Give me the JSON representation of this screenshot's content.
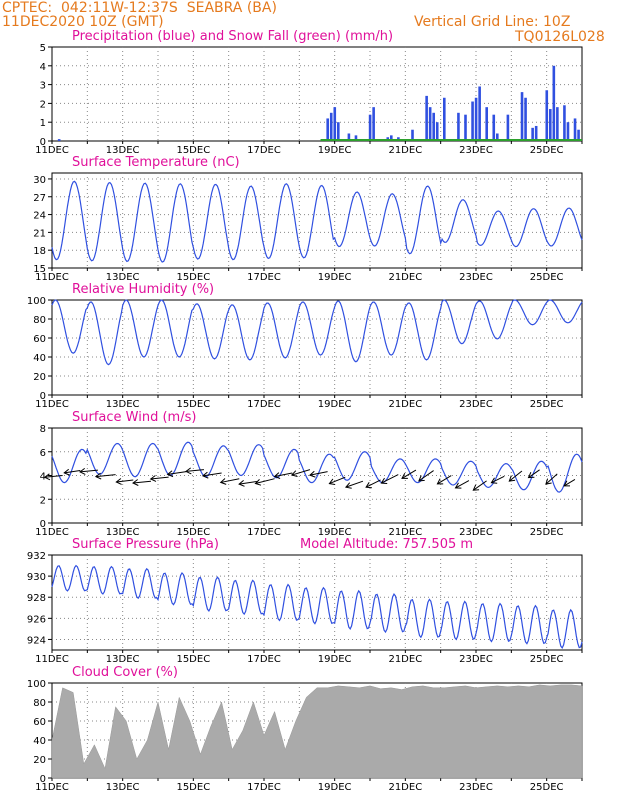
{
  "header": {
    "line1": "CPTEC:  042:11W-12:37S  SEABRA (BA)",
    "line2": "11DEC2020 10Z (GMT)",
    "grid_note": "Vertical Grid Line: 10Z",
    "code": "TQ0126L028"
  },
  "x_axis": {
    "days": 15,
    "tick_labels": [
      "11DEC",
      "13DEC",
      "15DEC",
      "17DEC",
      "19DEC",
      "21DEC",
      "23DEC",
      "25DEC"
    ],
    "tick_days": [
      0,
      2,
      4,
      6,
      8,
      10,
      12,
      14
    ]
  },
  "colors": {
    "line": "#3050e0",
    "snow": "#2ca02c",
    "title": "#e0109a",
    "header": "#e57a1e",
    "cloud": "#aaaaaa"
  },
  "chart_data": [
    {
      "type": "bar",
      "title": "Precipitation (blue) and Snow Fall (green) (mm/h)",
      "ylim": [
        0,
        5
      ],
      "yticks": [
        0,
        1,
        2,
        3,
        4,
        5
      ],
      "series": [
        {
          "name": "Precipitation",
          "color": "#3050e0",
          "x": [
            0.2,
            7.8,
            7.9,
            8.0,
            8.1,
            8.4,
            8.6,
            9.0,
            9.1,
            9.5,
            9.6,
            9.8,
            10.2,
            10.6,
            10.7,
            10.8,
            10.9,
            11.1,
            11.5,
            11.7,
            11.9,
            12.0,
            12.1,
            12.3,
            12.5,
            12.6,
            12.9,
            13.3,
            13.4,
            13.6,
            13.7,
            14.0,
            14.1,
            14.2,
            14.3,
            14.5,
            14.6,
            14.8,
            14.9
          ],
          "values": [
            0.1,
            1.2,
            1.5,
            1.8,
            1.0,
            0.4,
            0.3,
            1.4,
            1.8,
            0.2,
            0.3,
            0.2,
            0.6,
            2.4,
            1.8,
            1.5,
            1.0,
            2.3,
            1.5,
            1.4,
            2.1,
            2.3,
            2.9,
            1.8,
            1.4,
            0.4,
            1.4,
            2.6,
            2.3,
            0.7,
            0.8,
            2.7,
            1.7,
            4.0,
            1.8,
            1.9,
            1.0,
            1.2,
            0.6
          ]
        },
        {
          "name": "Snow Fall",
          "color": "#2ca02c",
          "x": [],
          "values": []
        }
      ]
    },
    {
      "type": "line",
      "title": "Surface Temperature (nC)",
      "ylim": [
        15,
        31
      ],
      "yticks": [
        15,
        18,
        21,
        24,
        27,
        30
      ],
      "series": [
        {
          "name": "Temperature",
          "period": 1,
          "phase": 0.38,
          "amp": [
            6.6,
            6.6,
            6.6,
            6.6,
            6.3,
            6.2,
            6.3,
            6.1,
            4.6,
            4.4,
            5.7,
            3.6,
            2.9,
            3.2,
            3.2
          ],
          "mean": [
            23.0,
            22.8,
            22.7,
            22.6,
            22.8,
            22.6,
            22.9,
            22.8,
            23.2,
            23.1,
            23.1,
            22.9,
            21.7,
            21.8,
            21.9
          ]
        }
      ]
    },
    {
      "type": "line",
      "title": "Relative Humidity (%)",
      "ylim": [
        0,
        100
      ],
      "yticks": [
        0,
        20,
        40,
        60,
        80,
        100
      ],
      "series": [
        {
          "name": "Relative Humidity",
          "period": 1,
          "phase": 0.85,
          "amp": [
            28,
            33,
            30,
            30,
            29,
            29,
            29,
            28,
            32,
            28,
            30,
            23,
            20,
            13,
            12
          ],
          "mean": [
            72,
            65,
            70,
            70,
            67,
            66,
            68,
            70,
            67,
            70,
            67,
            77,
            79,
            87,
            88
          ]
        }
      ]
    },
    {
      "type": "line",
      "title": "Surface Wind (m/s)",
      "ylim": [
        0,
        8
      ],
      "yticks": [
        0,
        2,
        4,
        6,
        8
      ],
      "series": [
        {
          "name": "Wind Speed",
          "period": 1,
          "phase": 0.6,
          "amp": [
            1.4,
            1.3,
            1.4,
            1.4,
            1.3,
            1.3,
            1.2,
            1.2,
            1.2,
            1.0,
            1.0,
            1.0,
            1.0,
            1.2,
            1.6
          ],
          "mean": [
            4.8,
            5.4,
            5.3,
            5.4,
            5.2,
            5.3,
            5.0,
            4.6,
            4.8,
            4.4,
            4.4,
            4.2,
            4.0,
            4.0,
            4.2
          ]
        }
      ],
      "arrows": {
        "day": [
          0.3,
          0.8,
          1.3,
          1.8,
          2.3,
          2.8,
          3.3,
          3.8,
          4.3,
          4.8,
          5.3,
          5.8,
          6.3,
          6.8,
          7.3,
          7.8,
          8.3,
          8.8,
          9.3,
          9.8,
          10.3,
          10.8,
          11.3,
          11.8,
          12.3,
          12.8,
          13.3,
          13.8,
          14.3,
          14.8
        ],
        "dx": [
          -1,
          -1,
          -1,
          -1,
          -1,
          -1,
          -1,
          -1,
          -1,
          -1,
          -1,
          -1,
          -1,
          -1,
          -1,
          -1,
          -1,
          -1,
          -1,
          -1,
          -1,
          -1,
          -1,
          -1,
          -1,
          -1,
          -1,
          -1,
          -1,
          -1
        ],
        "dy": [
          -0.1,
          -0.15,
          -0.1,
          -0.1,
          -0.12,
          -0.1,
          -0.1,
          -0.15,
          -0.1,
          -0.15,
          -0.2,
          -0.15,
          -0.25,
          -0.2,
          -0.3,
          -0.2,
          -0.4,
          -0.35,
          -0.5,
          -0.5,
          -0.6,
          -0.7,
          -0.6,
          -0.55,
          -0.7,
          -0.5,
          -0.8,
          -0.7,
          -0.9,
          -0.6
        ],
        "len": [
          1.0,
          0.9,
          1.0,
          1.1,
          0.95,
          1.0,
          1.0,
          1.05,
          1.0,
          1.05,
          1.05,
          1.0,
          1.1,
          1.0,
          1.05,
          1.0,
          0.95,
          1.0,
          0.9,
          1.05,
          0.9,
          1.0,
          0.9,
          0.85,
          0.9,
          0.8,
          0.9,
          0.75,
          0.85,
          0.7
        ]
      }
    },
    {
      "type": "line",
      "title": "Surface Pressure (hPa)",
      "subtitle": "Model Altitude: 757.505 m",
      "ylim": [
        923,
        932
      ],
      "yticks": [
        924,
        926,
        928,
        930,
        932
      ],
      "series": [
        {
          "name": "Pressure",
          "period": 0.5,
          "phase": 0.12,
          "amp": [
            1.2,
            1.3,
            1.4,
            1.5,
            1.6,
            1.6,
            1.7,
            1.7,
            1.8,
            1.8,
            1.8,
            1.8,
            1.8,
            1.8,
            1.8
          ],
          "mean": [
            929.8,
            929.6,
            929.3,
            928.8,
            928.3,
            928.0,
            927.5,
            927.2,
            926.8,
            926.5,
            926.0,
            925.8,
            925.6,
            925.4,
            925.0
          ]
        }
      ]
    },
    {
      "type": "area",
      "title": "Cloud Cover (%)",
      "ylim": [
        0,
        100
      ],
      "yticks": [
        0,
        20,
        40,
        60,
        80,
        100
      ],
      "series": [
        {
          "name": "Cloud Cover",
          "day": [
            0,
            0.3,
            0.6,
            0.9,
            1.2,
            1.5,
            1.8,
            2.1,
            2.4,
            2.7,
            3.0,
            3.3,
            3.6,
            3.9,
            4.2,
            4.5,
            4.8,
            5.1,
            5.4,
            5.7,
            6.0,
            6.3,
            6.6,
            6.9,
            7.2,
            7.5,
            7.8,
            8.1,
            8.4,
            8.7,
            9.0,
            9.3,
            9.6,
            9.9,
            10.2,
            10.5,
            10.8,
            11.1,
            11.4,
            11.7,
            12.0,
            12.3,
            12.6,
            12.9,
            13.2,
            13.5,
            13.8,
            14.1,
            14.4,
            14.7,
            15.0
          ],
          "values": [
            40,
            95,
            90,
            15,
            35,
            10,
            75,
            60,
            20,
            40,
            80,
            30,
            85,
            60,
            25,
            55,
            80,
            30,
            50,
            80,
            45,
            70,
            30,
            60,
            85,
            95,
            95,
            97,
            96,
            95,
            97,
            94,
            95,
            93,
            96,
            97,
            95,
            95,
            96,
            97,
            95,
            96,
            97,
            96,
            97,
            96,
            98,
            97,
            98,
            98,
            97
          ]
        }
      ]
    }
  ]
}
